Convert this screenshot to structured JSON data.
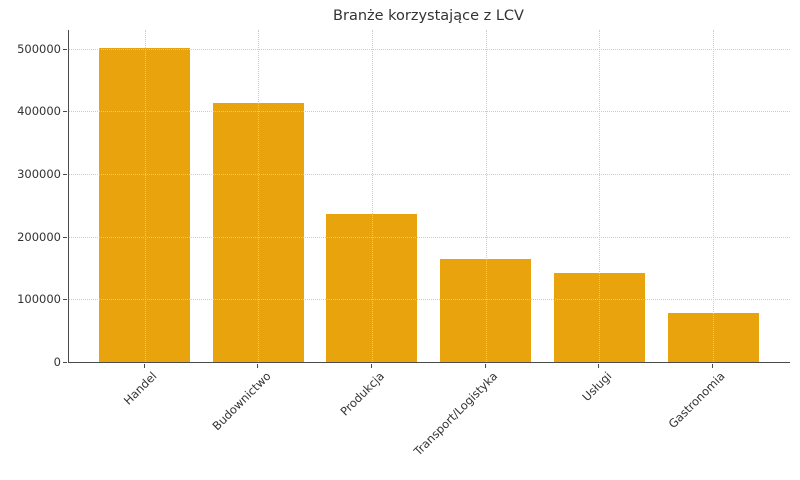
{
  "chart_data": {
    "type": "bar",
    "title": "Branże korzystające z LCV",
    "categories": [
      "Handel",
      "Budownictwo",
      "Produkcja",
      "Transport/Logistyka",
      "Usługi",
      "Gastronomia"
    ],
    "values": [
      502000,
      414000,
      236000,
      164000,
      142000,
      78000
    ],
    "xlabel": "",
    "ylabel": "",
    "ylim": [
      0,
      530000
    ],
    "yticks": [
      0,
      100000,
      200000,
      300000,
      400000,
      500000
    ],
    "grid": true,
    "grid_style": "dotted",
    "legend": false,
    "x_tick_rotation_deg": 45,
    "colors": {
      "bar": "#E8A30D",
      "text": "#333333",
      "grid": "#cccccc",
      "spine": "#4a4a4a",
      "background": "#ffffff"
    }
  }
}
